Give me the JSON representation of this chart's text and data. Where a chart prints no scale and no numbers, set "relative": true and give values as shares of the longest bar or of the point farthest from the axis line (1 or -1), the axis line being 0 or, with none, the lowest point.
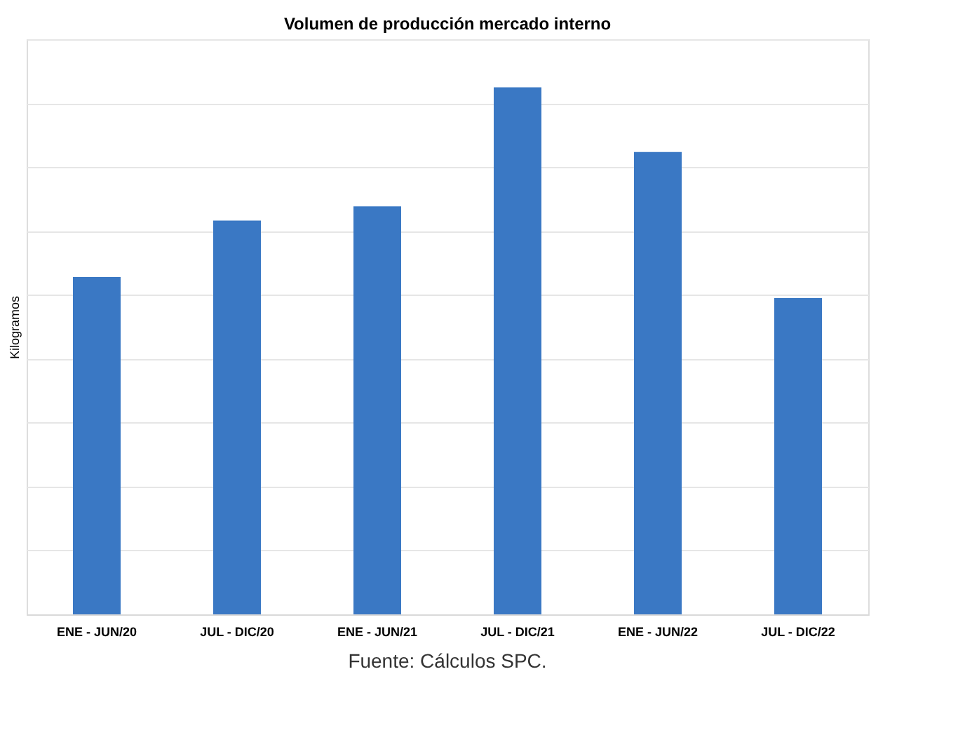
{
  "chart_data": {
    "type": "bar",
    "title": "Volumen de producción mercado interno",
    "ylabel": "Kilogramos",
    "categories": [
      "ENE - JUN/20",
      "JUL - DIC/20",
      "ENE - JUN/21",
      "JUL - DIC/21",
      "ENE - JUN/22",
      "JUL - DIC/22"
    ],
    "values": [
      0.64,
      0.747,
      0.774,
      1,
      0.877,
      0.6
    ],
    "color": "#3a78c4",
    "relative": true,
    "grid": "y",
    "tick_labels": "x",
    "annotations": [
      "Fuente: Cálculos SPC."
    ]
  }
}
